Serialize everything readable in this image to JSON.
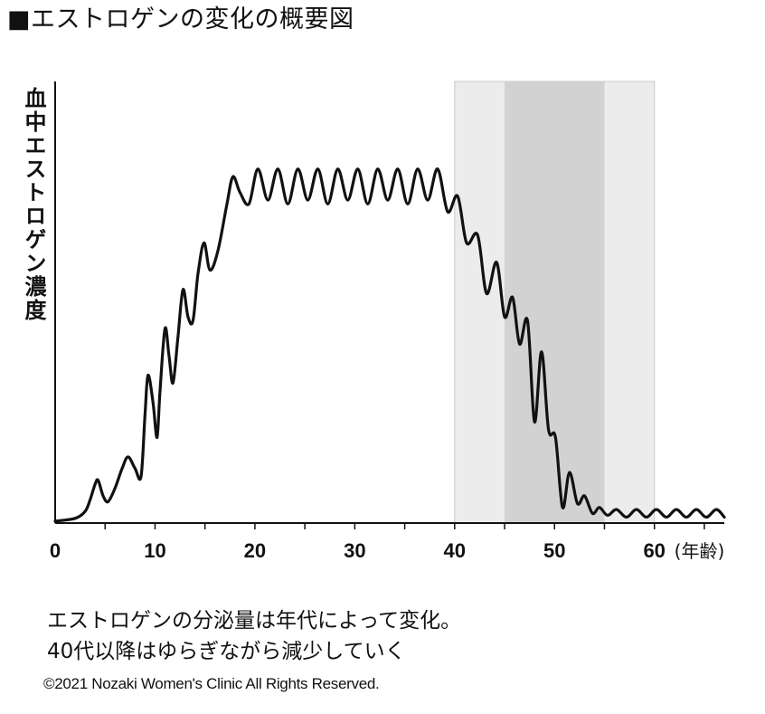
{
  "title": "■エストロゲンの変化の概要図",
  "chart_data": {
    "type": "line",
    "title": "エストロゲンの変化の概要図",
    "xlabel": "(年齢)",
    "ylabel": "血中エストロゲン濃度",
    "xlim": [
      0,
      67
    ],
    "ylim": [
      0,
      100
    ],
    "x_ticks": [
      0,
      10,
      20,
      30,
      40,
      50,
      60
    ],
    "y_ticks": [],
    "grid": false,
    "shaded_regions": [
      {
        "x_start": 40,
        "x_end": 60,
        "shade": "light",
        "color": "#ececec"
      },
      {
        "x_start": 45,
        "x_end": 55,
        "shade": "dark",
        "color": "#d2d2d2"
      }
    ],
    "series": [
      {
        "color": "#111111",
        "x": [
          0,
          2,
          3,
          3.5,
          4,
          4.3,
          4.8,
          5.3,
          6,
          6.7,
          7.3,
          8,
          8.6,
          9.0,
          9.3,
          9.8,
          10.2,
          10.5,
          11.0,
          11.4,
          11.8,
          12.3,
          12.8,
          13.3,
          13.8,
          14.3,
          14.9,
          15.5,
          16.3,
          17.2,
          17.8,
          18.5,
          19.4,
          20.3,
          21.3,
          22.3,
          23.3,
          24.3,
          25.3,
          26.3,
          27.3,
          28.3,
          29.3,
          30.3,
          31.3,
          32.3,
          33.3,
          34.3,
          35.3,
          36.3,
          37.3,
          38.3,
          39.3,
          40.3,
          41.2,
          42.3,
          43.2,
          44.2,
          45.0,
          45.8,
          46.5,
          47.3,
          48.0,
          48.7,
          49.4,
          50.1,
          50.8,
          51.5,
          52.3,
          53.0,
          53.8,
          54.5,
          55.3,
          56.2,
          57.2,
          58.2,
          59.2,
          60.2,
          61.2,
          62.2,
          63.2,
          64.2,
          65.2,
          66.2,
          67
        ],
        "y": [
          0.5,
          1.2,
          3,
          6,
          10,
          11,
          7,
          5.5,
          9,
          14,
          17,
          14,
          12,
          28,
          38,
          31,
          22,
          34,
          50,
          43,
          36,
          48,
          60,
          53,
          52,
          64,
          72,
          65,
          70,
          82,
          89,
          85,
          82,
          91,
          83,
          91,
          82,
          91,
          83,
          91,
          82,
          91,
          83,
          91,
          82,
          91,
          83,
          91,
          82,
          91,
          83,
          91,
          80,
          84,
          72,
          74,
          59,
          67,
          53,
          58,
          46,
          52,
          26,
          44,
          24,
          22,
          4,
          13,
          5,
          7,
          2.5,
          4,
          2,
          3.5,
          1.5,
          3.5,
          1.5,
          3.5,
          1.5,
          3.5,
          1.5,
          3.5,
          1.5,
          3.5,
          1.5
        ]
      }
    ]
  },
  "caption": {
    "line1": "エストロゲンの分泌量は年代によって変化。",
    "line2": "40代以降はゆらぎながら減少していく"
  },
  "copyright": "©2021 Nozaki Women's Clinic All Rights Reserved."
}
